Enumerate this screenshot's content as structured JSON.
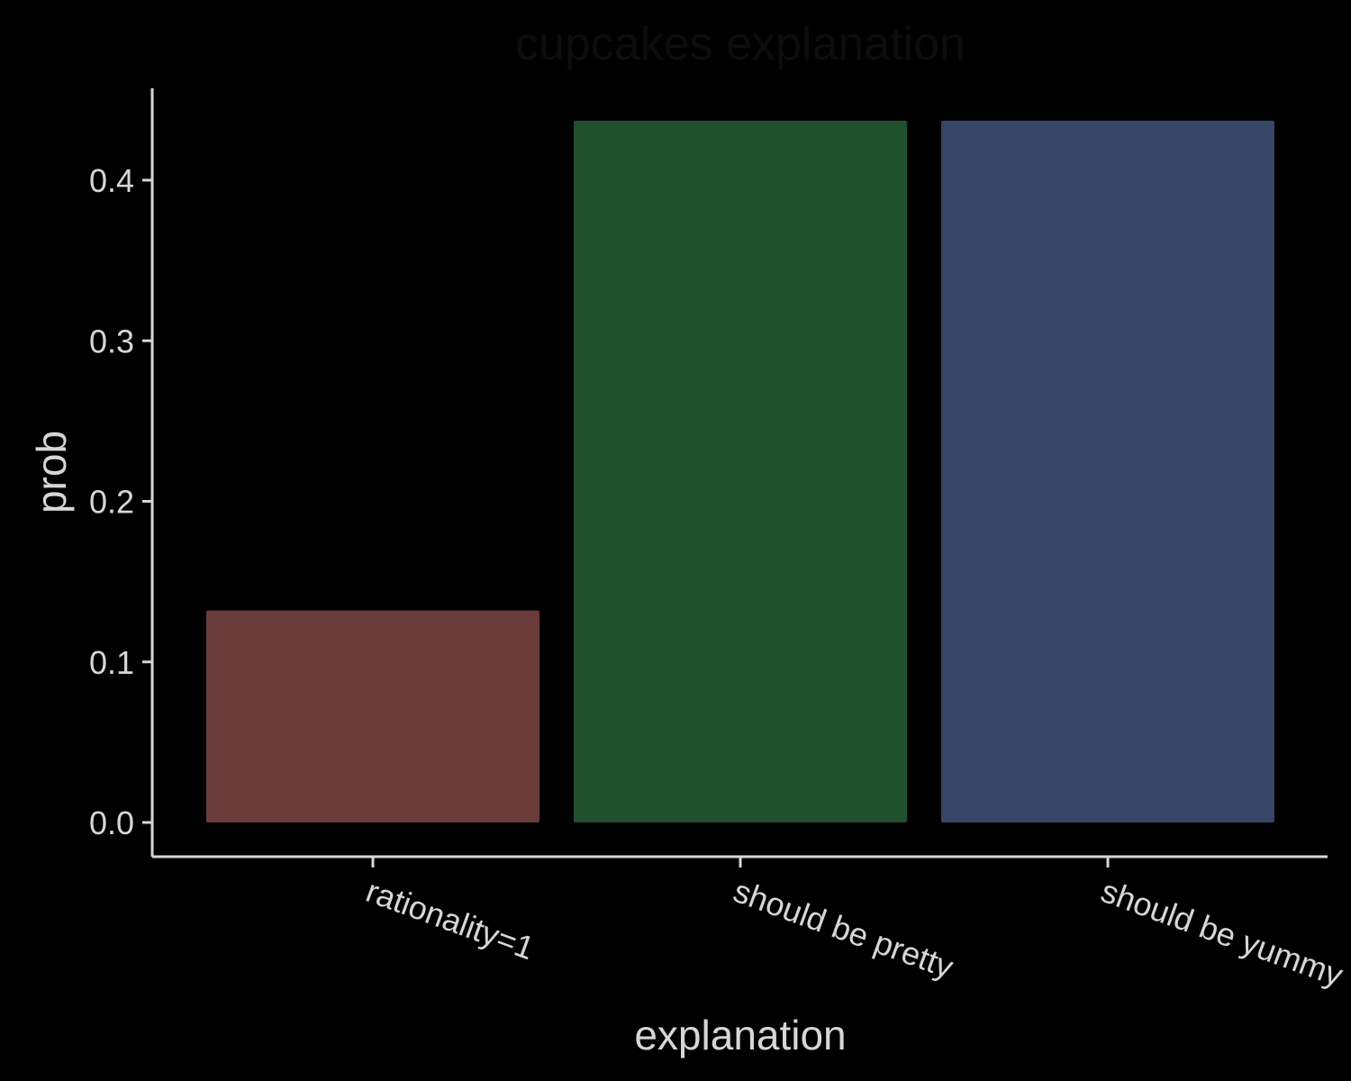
{
  "chart_data": {
    "type": "bar",
    "title": "cupcakes explanation",
    "xlabel": "explanation",
    "ylabel": "prob",
    "categories": [
      "rationality=1",
      "should be pretty",
      "should be yummy"
    ],
    "values": [
      0.132,
      0.437,
      0.437
    ],
    "colors": [
      "#693c3a",
      "#20502e",
      "#374566"
    ],
    "yticks": [
      "0.0",
      "0.1",
      "0.2",
      "0.3",
      "0.4"
    ],
    "ylim": [
      -0.021,
      0.455
    ],
    "grid": false,
    "legend": false,
    "background": "#000000",
    "axis_color": "#d6d6d6"
  }
}
